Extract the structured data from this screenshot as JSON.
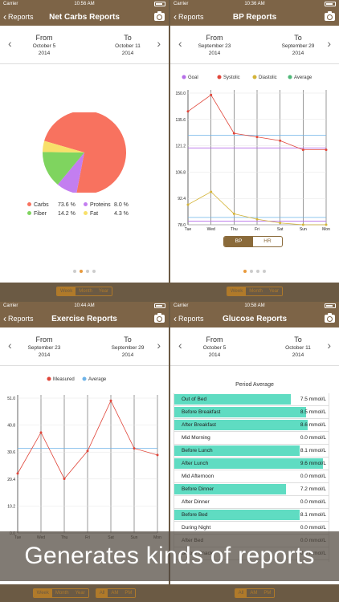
{
  "screens": [
    {
      "carrier": "Carrier",
      "time": "10:56 AM",
      "back": "Reports",
      "title": "Net Carbs Reports",
      "from_label": "From",
      "from_date": "October 5",
      "from_year": "2014",
      "to_label": "To",
      "to_date": "October 11",
      "to_year": "2014",
      "segments": [
        [
          "Week",
          "Month",
          "Year"
        ]
      ]
    },
    {
      "carrier": "Carrier",
      "time": "10:36 AM",
      "back": "Reports",
      "title": "BP Reports",
      "from_label": "From",
      "from_date": "September 23",
      "from_year": "2014",
      "to_label": "To",
      "to_date": "September 29",
      "to_year": "2014",
      "segments": [
        [
          "Week",
          "Month",
          "Year"
        ]
      ],
      "toggle": [
        "BP",
        "HR"
      ]
    },
    {
      "carrier": "Carrier",
      "time": "10:44 AM",
      "back": "Reports",
      "title": "Exercise Reports",
      "from_label": "From",
      "from_date": "September 23",
      "from_year": "2014",
      "to_label": "To",
      "to_date": "September 29",
      "to_year": "2014",
      "segments": [
        [
          "Week",
          "Month",
          "Year"
        ],
        [
          "All",
          "AM",
          "PM"
        ]
      ]
    },
    {
      "carrier": "Carrier",
      "time": "10:58 AM",
      "back": "Reports",
      "title": "Glucose Reports",
      "from_label": "From",
      "from_date": "October 5",
      "from_year": "2014",
      "to_label": "To",
      "to_date": "October 11",
      "to_year": "2014",
      "segments": [
        [
          "All",
          "AM",
          "PM"
        ]
      ],
      "period_title": "Period Average"
    }
  ],
  "banner": "Generates kinds of reports",
  "chart_data": [
    {
      "type": "pie",
      "slices": [
        {
          "name": "Carbs",
          "value": 73.6,
          "label": "73.6 %",
          "color": "#f8725f"
        },
        {
          "name": "Proteins",
          "value": 8.0,
          "label": "8.0 %",
          "color": "#c37ef0"
        },
        {
          "name": "Fiber",
          "value": 14.2,
          "label": "14.2 %",
          "color": "#7fd45f"
        },
        {
          "name": "Fat",
          "value": 4.3,
          "label": "4.3 %",
          "color": "#f8e06a"
        }
      ]
    },
    {
      "type": "line",
      "categories": [
        "Tue",
        "Wed",
        "Thu",
        "Fri",
        "Sat",
        "Sun",
        "Mon"
      ],
      "yticks": [
        "150.0",
        "135.6",
        "121.2",
        "106.8",
        "92.4",
        "78.0"
      ],
      "ylim": [
        78,
        150
      ],
      "legend": [
        "Goal",
        "Systolic",
        "Diastolic",
        "Average"
      ],
      "legend_colors": [
        "#b66ee8",
        "#e0463a",
        "#d4b438",
        "#4fb878"
      ],
      "goal_lines": [
        {
          "value": 120,
          "color": "#b66ee8"
        },
        {
          "value": 80,
          "color": "#b66ee8"
        }
      ],
      "average_lines": [
        {
          "value": 127,
          "color": "#6fb4e8"
        },
        {
          "value": 82,
          "color": "#6fb4e8"
        }
      ],
      "series": [
        {
          "name": "Systolic",
          "color": "#e0463a",
          "values": [
            140,
            149,
            128,
            126,
            124,
            119,
            119
          ]
        },
        {
          "name": "Diastolic",
          "color": "#d4b438",
          "values": [
            89,
            96,
            84,
            81,
            79,
            78,
            78
          ]
        }
      ]
    },
    {
      "type": "line",
      "categories": [
        "Tue",
        "Wed",
        "Thu",
        "Fri",
        "Sat",
        "Sun",
        "Mon"
      ],
      "yticks": [
        "51.0",
        "40.8",
        "30.6",
        "20.4",
        "10.2",
        "0.0"
      ],
      "ylim": [
        0,
        51
      ],
      "legend": [
        "Measured",
        "Average"
      ],
      "legend_colors": [
        "#e0463a",
        "#6fb4e8"
      ],
      "average_lines": [
        {
          "value": 32,
          "color": "#6fb4e8"
        }
      ],
      "series": [
        {
          "name": "Measured",
          "color": "#e0463a",
          "values": [
            22.5,
            38,
            20.5,
            31,
            50,
            32,
            29.5
          ]
        }
      ]
    },
    {
      "type": "table",
      "unit": "mmol/L",
      "max": 9.6,
      "rows": [
        {
          "name": "Out of Bed",
          "value": 7.5,
          "label": "7.5 mmol/L"
        },
        {
          "name": "Before Breakfast",
          "value": 8.5,
          "label": "8.5 mmol/L"
        },
        {
          "name": "After Breakfast",
          "value": 8.6,
          "label": "8.6 mmol/L"
        },
        {
          "name": "Mid Morning",
          "value": 0,
          "label": "0.0 mmol/L"
        },
        {
          "name": "Before Lunch",
          "value": 8.1,
          "label": "8.1 mmol/L"
        },
        {
          "name": "After Lunch",
          "value": 9.6,
          "label": "9.6 mmol/L"
        },
        {
          "name": "Mid Afternoon",
          "value": 0,
          "label": "0.0 mmol/L"
        },
        {
          "name": "Before Dinner",
          "value": 7.2,
          "label": "7.2 mmol/L"
        },
        {
          "name": "After Dinner",
          "value": 0,
          "label": "0.0 mmol/L"
        },
        {
          "name": "Before Bed",
          "value": 8.1,
          "label": "8.1 mmol/L"
        },
        {
          "name": "During Night",
          "value": 0,
          "label": "0.0 mmol/L"
        },
        {
          "name": "After Bed",
          "value": 0,
          "label": "0.0 mmol/L"
        },
        {
          "name": "Before Snack",
          "value": 0,
          "label": "0.0 mmol/L"
        }
      ]
    }
  ]
}
